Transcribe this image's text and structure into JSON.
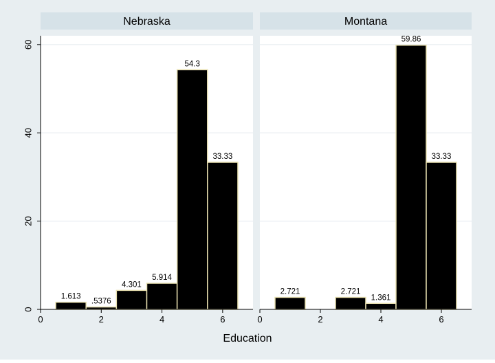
{
  "chart_data": {
    "type": "bar",
    "subtype": "histogram-by-group",
    "xlabel": "Education",
    "ylabel": "",
    "xlim": [
      0,
      7
    ],
    "ylim": [
      0,
      62
    ],
    "x_ticks": [
      0,
      2,
      4,
      6
    ],
    "y_ticks": [
      0,
      20,
      40,
      60
    ],
    "grid": true,
    "colors": {
      "outer_background": "#e8eef1",
      "plot_background": "#ffffff",
      "panel_header": "#d6e2e8",
      "bar_fill": "#000000",
      "bar_outline": "#e8e0b0",
      "gridline": "#e8eef1"
    },
    "panels": [
      {
        "title": "Nebraska",
        "bars": [
          {
            "x": 1,
            "value": 1.613,
            "label": "1.613"
          },
          {
            "x": 2,
            "value": 0.5376,
            "label": ".5376"
          },
          {
            "x": 3,
            "value": 4.301,
            "label": "4.301"
          },
          {
            "x": 4,
            "value": 5.914,
            "label": "5.914"
          },
          {
            "x": 5,
            "value": 54.3,
            "label": "54.3"
          },
          {
            "x": 6,
            "value": 33.33,
            "label": "33.33"
          }
        ]
      },
      {
        "title": "Montana",
        "bars": [
          {
            "x": 1,
            "value": 2.721,
            "label": "2.721"
          },
          {
            "x": 3,
            "value": 2.721,
            "label": "2.721"
          },
          {
            "x": 4,
            "value": 1.361,
            "label": "1.361"
          },
          {
            "x": 5,
            "value": 59.86,
            "label": "59.86"
          },
          {
            "x": 6,
            "value": 33.33,
            "label": "33.33"
          }
        ]
      }
    ]
  }
}
